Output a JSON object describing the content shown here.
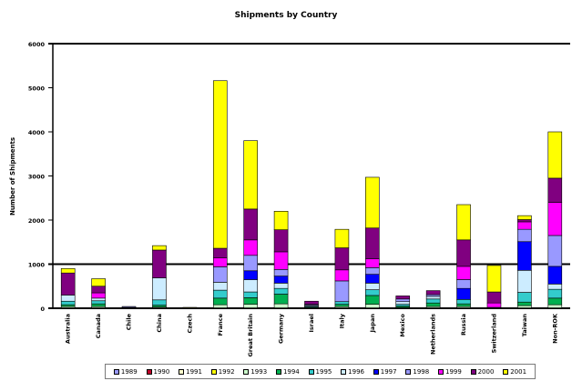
{
  "chart_data": {
    "type": "bar",
    "stacked": true,
    "title": "Shipments by Country",
    "xlabel": "",
    "ylabel": "Number of Shipments",
    "ylim": [
      0,
      6000
    ],
    "yticks": [
      0,
      1000,
      2000,
      3000,
      4000,
      5000,
      6000
    ],
    "grid": false,
    "legend_position": "bottom",
    "categories": [
      "Australia",
      "Canada",
      "Chile",
      "China",
      "Czech",
      "France",
      "Great Britain",
      "Germany",
      "Israel",
      "Italy",
      "Japan",
      "Mexico",
      "Netherlands",
      "Russia",
      "Switzerland",
      "Taiwan",
      "Non-ROK"
    ],
    "series": [
      {
        "name": "1989",
        "color": "#9999ff",
        "values": [
          0,
          0,
          0,
          0,
          0,
          0,
          0,
          0,
          0,
          0,
          0,
          0,
          0,
          0,
          0,
          0,
          0
        ]
      },
      {
        "name": "1990",
        "color": "#c0002a",
        "values": [
          0,
          0,
          0,
          0,
          0,
          0,
          0,
          0,
          0,
          0,
          0,
          0,
          0,
          0,
          0,
          0,
          0
        ]
      },
      {
        "name": "1991",
        "color": "#ffffcc",
        "values": [
          0,
          0,
          0,
          0,
          0,
          0,
          0,
          0,
          0,
          0,
          0,
          0,
          0,
          0,
          0,
          0,
          0
        ]
      },
      {
        "name": "1992",
        "color": "#ffff00",
        "values": [
          0,
          0,
          0,
          0,
          0,
          0,
          0,
          0,
          0,
          0,
          0,
          0,
          0,
          0,
          0,
          0,
          0
        ]
      },
      {
        "name": "1993",
        "color": "#ccffcc",
        "values": [
          40,
          40,
          0,
          30,
          0,
          80,
          90,
          100,
          10,
          40,
          90,
          20,
          40,
          40,
          0,
          60,
          80
        ]
      },
      {
        "name": "1994",
        "color": "#00b050",
        "values": [
          40,
          60,
          0,
          40,
          0,
          150,
          150,
          220,
          20,
          50,
          200,
          30,
          80,
          60,
          0,
          80,
          150
        ]
      },
      {
        "name": "1995",
        "color": "#33cccc",
        "values": [
          80,
          70,
          0,
          120,
          0,
          180,
          130,
          130,
          20,
          60,
          130,
          40,
          90,
          100,
          20,
          220,
          200
        ]
      },
      {
        "name": "1996",
        "color": "#ccecff",
        "values": [
          140,
          60,
          10,
          500,
          0,
          180,
          280,
          120,
          20,
          0,
          150,
          60,
          60,
          0,
          0,
          500,
          120
        ]
      },
      {
        "name": "1997",
        "color": "#0000ff",
        "values": [
          0,
          0,
          10,
          0,
          0,
          0,
          200,
          160,
          0,
          0,
          200,
          0,
          0,
          250,
          0,
          650,
          400
        ]
      },
      {
        "name": "1998",
        "color": "#9999ff",
        "values": [
          0,
          0,
          20,
          0,
          0,
          350,
          350,
          150,
          20,
          470,
          150,
          60,
          40,
          200,
          0,
          280,
          700
        ]
      },
      {
        "name": "1999",
        "color": "#ff00ff",
        "values": [
          0,
          120,
          0,
          0,
          0,
          200,
          350,
          400,
          0,
          250,
          200,
          0,
          0,
          300,
          100,
          170,
          750
        ]
      },
      {
        "name": "2000",
        "color": "#800080",
        "values": [
          500,
          150,
          0,
          630,
          0,
          220,
          700,
          500,
          70,
          500,
          700,
          70,
          90,
          600,
          250,
          50,
          550
        ]
      },
      {
        "name": "2001",
        "color": "#ffff00",
        "values": [
          100,
          170,
          0,
          100,
          20,
          3800,
          1550,
          420,
          0,
          420,
          1150,
          0,
          0,
          800,
          600,
          90,
          1050
        ]
      }
    ]
  }
}
